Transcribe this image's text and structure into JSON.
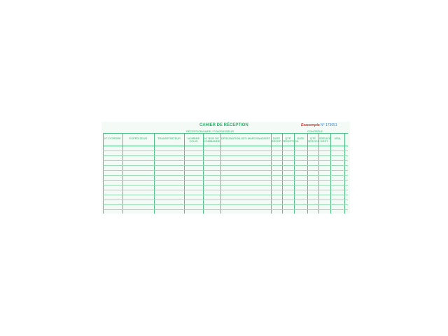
{
  "document": {
    "title": "CAHIER DE RÉCEPTION",
    "brand": "Exacompta",
    "number": "N° 173051",
    "group_left": "RÉCEPTIONNAIRE / FOURNISSEUR",
    "group_right": "CONTRÔLE",
    "columns": [
      "N° D'ORDRE",
      "EXPÉDITEUR",
      "TRANSPORTEUR",
      "NOMBRE COLIS",
      "N° BON DE COMMANDE",
      "DÉSIGNATION DES MARCHANDISES",
      "DATE RÉCEP.",
      "QTÉ RÉCEPTION",
      "DATE",
      "QTÉ SERVICE",
      "SERVICE DEST.",
      "VISA"
    ]
  },
  "colors": {
    "lines": "#4fc184",
    "accent": "#d8312b"
  }
}
